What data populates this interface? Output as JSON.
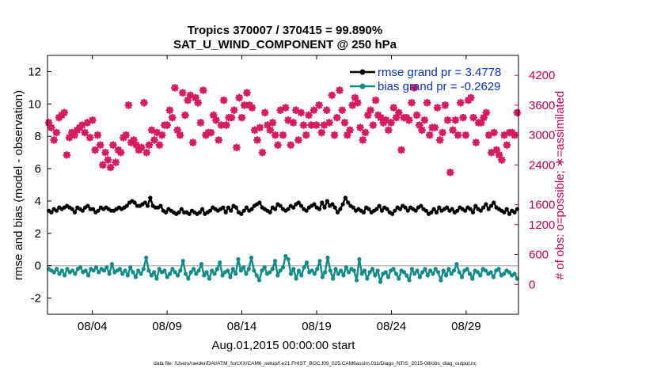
{
  "chart_data": {
    "type": "line",
    "title": "Tropics 370007 / 370415 = 99.890%",
    "subtitle": "SAT_U_WIND_COMPONENT @ 250 hPa",
    "xlabel": "Aug.01,2015 00:00:00 start",
    "ylabel": "rmse and bias (model - observation)",
    "y2label": "# of obs: o=possible; ∗=assimilated",
    "xlim": [
      1,
      32.5
    ],
    "ylim": [
      -3,
      13
    ],
    "y2lim": [
      -600,
      4600
    ],
    "x_ticks": [
      {
        "value": 4,
        "label": "08/04"
      },
      {
        "value": 9,
        "label": "08/09"
      },
      {
        "value": 14,
        "label": "08/14"
      },
      {
        "value": 19,
        "label": "08/19"
      },
      {
        "value": 24,
        "label": "08/24"
      },
      {
        "value": 29,
        "label": "08/29"
      }
    ],
    "y_ticks": [
      -2,
      0,
      2,
      4,
      6,
      8,
      10,
      12
    ],
    "y2_ticks": [
      0,
      600,
      1200,
      1600,
      2400,
      3000,
      3600,
      4200
    ],
    "legend_position": "top-right",
    "colors": {
      "rmse": "#000000",
      "bias": "#0e8c85",
      "obs": "#d81b60",
      "zero_line": "#bbbbbb",
      "legend_text": "#0a33b5",
      "right_axis": "#c8004b"
    },
    "series": [
      {
        "name": "rmse grand pr = 3.4778",
        "color": "#000000",
        "values": [
          3.4,
          3.3,
          3.5,
          3.4,
          3.6,
          3.5,
          3.6,
          3.7,
          3.6,
          3.5,
          3.3,
          3.6,
          3.5,
          3.4,
          3.6,
          3.7,
          3.5,
          3.5,
          3.3,
          3.4,
          3.6,
          3.5,
          3.6,
          3.5,
          3.4,
          3.4,
          3.5,
          3.6,
          3.5,
          3.6,
          3.7,
          3.9,
          4.0,
          3.9,
          3.7,
          3.7,
          3.8,
          3.9,
          3.7,
          4.2,
          3.7,
          3.6,
          3.6,
          3.7,
          3.4,
          3.3,
          3.5,
          3.4,
          3.3,
          3.2,
          3.3,
          3.5,
          3.3,
          3.3,
          3.2,
          3.4,
          3.3,
          3.2,
          3.3,
          3.5,
          3.2,
          3.3,
          3.4,
          3.6,
          3.5,
          3.4,
          3.5,
          3.6,
          3.3,
          3.6,
          3.4,
          3.7,
          3.6,
          3.3,
          3.2,
          3.4,
          3.6,
          3.4,
          3.5,
          3.7,
          3.8,
          3.9,
          3.6,
          3.5,
          3.4,
          3.3,
          3.6,
          3.5,
          3.8,
          3.7,
          3.5,
          3.4,
          3.5,
          3.7,
          3.6,
          3.8,
          3.9,
          3.7,
          3.5,
          3.4,
          3.6,
          3.7,
          3.8,
          3.6,
          3.5,
          3.9,
          3.6,
          4.0,
          3.7,
          3.8,
          3.6,
          3.3,
          3.5,
          3.8,
          4.2,
          3.9,
          3.7,
          3.6,
          3.4,
          3.5,
          3.4,
          3.3,
          3.6,
          3.5,
          3.3,
          3.4,
          3.5,
          3.7,
          3.4,
          3.6,
          3.5,
          3.3,
          3.2,
          3.4,
          3.6,
          3.5,
          3.7,
          3.6,
          3.4,
          3.6,
          3.5,
          3.4,
          3.6,
          3.7,
          3.5,
          3.4,
          3.2,
          3.3,
          3.5,
          3.3,
          3.6,
          3.4,
          3.5,
          3.6,
          3.4,
          3.5,
          3.3,
          3.4,
          3.6,
          3.5,
          3.4,
          3.6,
          3.5,
          3.3,
          3.7,
          3.5,
          3.4,
          3.6,
          3.8,
          3.5,
          3.7,
          3.9,
          3.6,
          3.5,
          3.4,
          3.3,
          3.5,
          3.2,
          3.4,
          3.3,
          3.5
        ]
      },
      {
        "name": "bias grand pr = -0.2629",
        "color": "#0e8c85",
        "values": [
          -0.2,
          -0.3,
          -0.4,
          -0.2,
          -0.5,
          -0.3,
          -0.6,
          -0.2,
          -0.4,
          -0.3,
          -0.5,
          -0.2,
          -0.1,
          -0.4,
          -0.3,
          -0.6,
          -0.2,
          -0.3,
          -0.1,
          -0.4,
          -0.2,
          -0.3,
          -0.1,
          -0.5,
          0.1,
          -0.4,
          -0.3,
          -0.2,
          -0.5,
          -0.3,
          -0.6,
          -0.1,
          -0.4,
          -0.7,
          -0.3,
          -0.5,
          -0.2,
          0.5,
          -0.3,
          -0.6,
          -0.4,
          -0.8,
          -0.2,
          -0.4,
          -0.3,
          -0.7,
          -0.5,
          -0.2,
          -0.4,
          -0.6,
          -0.3,
          0.3,
          -0.5,
          -0.8,
          -0.4,
          -0.2,
          -0.5,
          -0.3,
          0.1,
          -0.6,
          -0.4,
          -0.8,
          -0.3,
          -0.5,
          -0.2,
          0.2,
          -0.6,
          -0.4,
          -0.3,
          -0.7,
          -0.2,
          -0.5,
          0.4,
          -0.3,
          -0.1,
          -0.5,
          -0.2,
          0.5,
          -0.3,
          -0.6,
          -0.9,
          -0.3,
          -0.1,
          -0.5,
          -0.4,
          -0.2,
          0.3,
          -0.6,
          -0.3,
          -0.1,
          0.6,
          0.4,
          -0.5,
          -0.2,
          -0.8,
          -0.3,
          -0.6,
          -0.1,
          0.2,
          -0.4,
          -0.3,
          -0.5,
          -0.2,
          0.3,
          -0.7,
          -0.4,
          0.5,
          -0.3,
          -0.8,
          -0.2,
          -0.5,
          -0.3,
          -0.6,
          -0.1,
          -0.4,
          -0.2,
          -0.3,
          -0.9,
          0.4,
          -0.5,
          -0.3,
          -0.8,
          -0.4,
          -0.2,
          -0.6,
          -0.3,
          -1.0,
          -0.5,
          -0.4,
          -0.7,
          -0.3,
          -0.2,
          -0.5,
          -0.8,
          -0.3,
          -0.4,
          -0.6,
          -0.9,
          -0.2,
          -0.5,
          -0.3,
          -0.7,
          -0.4,
          -0.2,
          -0.6,
          -0.3,
          -0.5,
          -0.2,
          -0.4,
          -0.9,
          -0.3,
          -0.6,
          -0.2,
          -0.5,
          -0.3,
          0.1,
          -0.4,
          -0.7,
          -0.3,
          -0.2,
          -0.5,
          -0.8,
          -0.3,
          -0.4,
          -0.6,
          -0.2,
          -0.3,
          -0.5,
          -0.4,
          -0.7,
          -0.3,
          -0.2,
          -0.6,
          -0.5,
          -0.3,
          -0.4,
          -0.6,
          -0.5,
          -0.8
        ]
      },
      {
        "name": "obs possible",
        "color": "#d81b60",
        "values": [
          3250,
          3150,
          2900,
          3050,
          3350,
          3400,
          3450,
          2600,
          2950,
          3050,
          3000,
          3100,
          3150,
          3200,
          3050,
          3250,
          2950,
          3300,
          2700,
          3000,
          2800,
          2400,
          2650,
          2500,
          2350,
          2800,
          2450,
          2700,
          2650,
          2950,
          3000,
          3600,
          2850,
          2900,
          2800,
          2700,
          2750,
          3650,
          2650,
          2800,
          3100,
          2900,
          3050,
          2800,
          3000,
          3200,
          3200,
          3500,
          3350,
          3950,
          3100,
          3000,
          3850,
          3400,
          3700,
          3800,
          2850,
          3750,
          3650,
          3250,
          3900,
          3000,
          3050,
          3050,
          3400,
          3300,
          2900,
          3200,
          3700,
          3200,
          3350,
          3350,
          3500,
          2750,
          3750,
          3350,
          3600,
          3850,
          3600,
          3550,
          3100,
          2900,
          3150,
          2650,
          3450,
          3200,
          3100,
          3250,
          3000,
          2800,
          3500,
          3000,
          3550,
          3300,
          2800,
          3250,
          3500,
          2900,
          3450,
          3200,
          3000,
          3400,
          3200,
          3500,
          3200,
          3600,
          3050,
          3200,
          3500,
          3250,
          3800,
          3000,
          3350,
          3900,
          3500,
          3250,
          3000,
          3100,
          3600,
          3750,
          3650,
          3150,
          2900,
          3050,
          3400,
          3500,
          3200,
          3700,
          3400,
          3350,
          3250,
          3300,
          3100,
          3250,
          3550,
          3350,
          3450,
          2700,
          3350,
          3350,
          3300,
          3650,
          3950,
          3400,
          3200,
          3100,
          3300,
          3650,
          3000,
          3150,
          3150,
          3550,
          2900,
          3050,
          3600,
          3300,
          2250,
          3100,
          3300,
          3000,
          3650,
          3350,
          3000,
          3700,
          3750,
          3350,
          2850,
          3250,
          3250,
          3350,
          3450,
          3000,
          2650,
          3050,
          2700,
          2600,
          2500,
          3000,
          2800,
          3050,
          3050,
          3000,
          3450
        ]
      }
    ]
  },
  "footer": "data file: /Users/raeder/DAI/ATM_forcXX/CAM6_setup/f.e21.FHIST_BGC.f09_025.CAM6assim.011/Diags_NTrS_2015-08/obs_diag_output.nc"
}
